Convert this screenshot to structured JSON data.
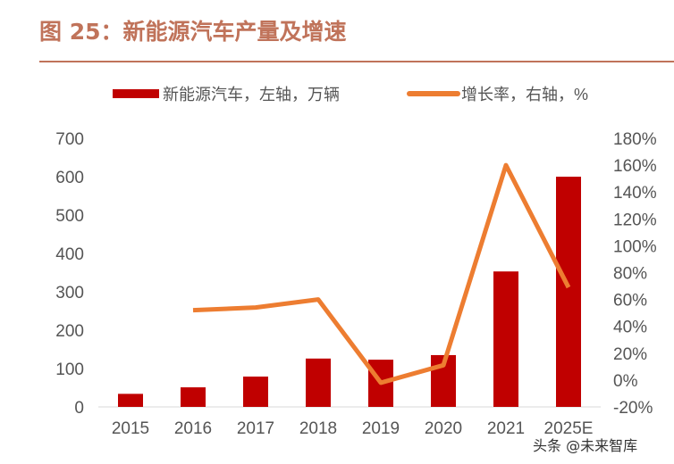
{
  "title": "图 25：新能源汽车产量及增速",
  "watermark": "头条 @未来智库",
  "chart_data": {
    "type": "bar+line",
    "categories": [
      "2015",
      "2016",
      "2017",
      "2018",
      "2019",
      "2020",
      "2021",
      "2025E"
    ],
    "series": [
      {
        "name": "新能源汽车，左轴，万辆",
        "type": "bar",
        "axis": "left",
        "color": "#c00000",
        "values": [
          34,
          51,
          79,
          126,
          123,
          135,
          353,
          600
        ]
      },
      {
        "name": "增长率，右轴，%",
        "type": "line",
        "axis": "right",
        "color": "#ed7d31",
        "values": [
          null,
          52,
          54,
          60,
          -2,
          11,
          160,
          69
        ]
      }
    ],
    "left_axis": {
      "ylim": [
        0,
        700
      ],
      "ticks": [
        "0",
        "100",
        "200",
        "300",
        "400",
        "500",
        "600",
        "700"
      ]
    },
    "right_axis": {
      "ylim": [
        -20,
        180
      ],
      "ticks": [
        "-20%",
        "0%",
        "20%",
        "40%",
        "60%",
        "80%",
        "100%",
        "120%",
        "140%",
        "160%",
        "180%"
      ]
    },
    "legend": "top",
    "grid": false
  }
}
